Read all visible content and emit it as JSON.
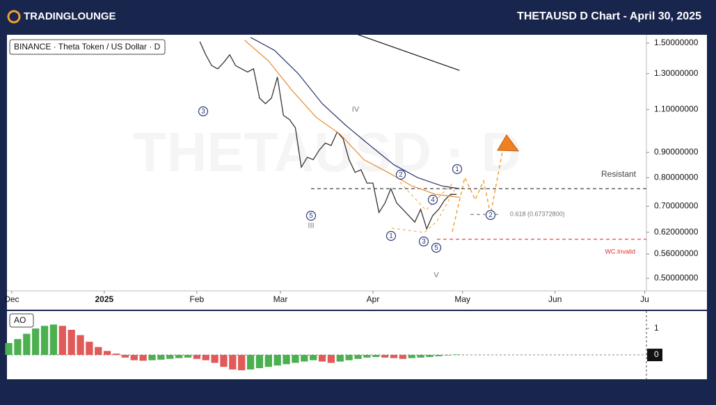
{
  "header": {
    "logo": "TRADINGLOUNGE",
    "title": "THETAUSD D Chart - April 30, 2025"
  },
  "chart_data": [
    {
      "type": "line",
      "legend_title": "BINANCE · Theta Token / US Dollar · D",
      "watermark": "THETAUSD · D",
      "log_scale": true,
      "xlim": [
        -1.6,
        212.6
      ],
      "xticks": [
        {
          "value": 0,
          "label": "Dec"
        },
        {
          "value": 31,
          "label": "2025"
        },
        {
          "value": 62,
          "label": "Feb"
        },
        {
          "value": 90,
          "label": "Mar"
        },
        {
          "value": 121,
          "label": "Apr"
        },
        {
          "value": 151,
          "label": "May"
        },
        {
          "value": 182,
          "label": "Jun"
        },
        {
          "value": 212,
          "label": "Ju"
        }
      ],
      "ylim": [
        0.4715,
        1.559
      ],
      "yticks": [
        {
          "value": 1.5,
          "label": "1.50000000"
        },
        {
          "value": 1.3,
          "label": "1.30000000"
        },
        {
          "value": 1.1,
          "label": "1.10000000"
        },
        {
          "value": 0.9,
          "label": "0.90000000"
        },
        {
          "value": 0.8,
          "label": "0.80000000"
        },
        {
          "value": 0.7,
          "label": "0.70000000"
        },
        {
          "value": 0.62,
          "label": "0.62000000"
        },
        {
          "value": 0.56,
          "label": "0.56000000"
        },
        {
          "value": 0.5,
          "label": "0.50000000"
        }
      ],
      "series": [
        {
          "color": "#333333",
          "x": [
            63,
            65,
            67,
            69,
            71,
            73,
            75,
            77,
            79,
            81,
            83,
            85,
            87,
            89,
            91,
            93,
            95,
            97,
            99,
            101,
            103,
            105,
            107,
            109,
            111,
            113,
            115,
            117,
            119,
            121,
            123,
            125,
            127,
            129,
            131,
            133,
            135,
            137,
            139,
            141,
            143,
            145,
            147,
            149
          ],
          "values": [
            1.51,
            1.42,
            1.35,
            1.33,
            1.37,
            1.42,
            1.35,
            1.33,
            1.31,
            1.33,
            1.16,
            1.13,
            1.16,
            1.28,
            1.07,
            1.05,
            1.01,
            0.84,
            0.88,
            0.87,
            0.91,
            0.94,
            0.93,
            0.99,
            0.96,
            0.87,
            0.82,
            0.83,
            0.78,
            0.78,
            0.68,
            0.71,
            0.76,
            0.71,
            0.69,
            0.67,
            0.65,
            0.69,
            0.63,
            0.67,
            0.69,
            0.72,
            0.74,
            0.74
          ]
        },
        {
          "color": "#e8892b",
          "x": [
            78,
            86,
            94,
            102,
            110,
            118,
            126,
            134,
            142,
            150
          ],
          "values": [
            1.52,
            1.38,
            1.2,
            1.06,
            0.98,
            0.87,
            0.82,
            0.77,
            0.74,
            0.73
          ]
        },
        {
          "color": "#2b3566",
          "x": [
            80,
            88,
            96,
            104,
            112,
            120,
            128,
            136,
            144,
            150
          ],
          "values": [
            1.54,
            1.45,
            1.3,
            1.13,
            1.02,
            0.93,
            0.85,
            0.8,
            0.77,
            0.76
          ]
        },
        {
          "color": "#111111",
          "x": [
            116,
            150
          ],
          "values": [
            1.56,
            1.32
          ]
        }
      ],
      "levels": [
        {
          "value": 0.76,
          "label": "Resistant",
          "color": "#444444"
        },
        {
          "value": 0.6737,
          "label": "0.618 (0.67372800)",
          "color": "#777777"
        },
        {
          "value": 0.6,
          "label": "WC.Invalid",
          "color": "#e03030"
        }
      ],
      "annotations": [
        {
          "text": "3",
          "style": "circle"
        },
        {
          "text": "IV",
          "style": "plain"
        },
        {
          "text": "5",
          "style": "circle"
        },
        {
          "text": "III",
          "style": "plain"
        },
        {
          "text": "2",
          "style": "circle"
        },
        {
          "text": "1",
          "style": "circle"
        },
        {
          "text": "4",
          "style": "circle"
        },
        {
          "text": "1",
          "style": "circle"
        },
        {
          "text": "3",
          "style": "circle"
        },
        {
          "text": "5",
          "style": "circle"
        },
        {
          "text": "V",
          "style": "plain"
        },
        {
          "text": "2",
          "style": "circle"
        }
      ]
    },
    {
      "type": "bar",
      "title": "AO",
      "up_color": "#4caf50",
      "down_color": "#e05a5a",
      "xlim": [
        -1.6,
        212.6
      ],
      "ylim": [
        -0.92,
        1.66
      ],
      "yticks": [
        1,
        0
      ],
      "x": [
        -1,
        2,
        5,
        8,
        11,
        14,
        17,
        20,
        23,
        26,
        29,
        32,
        35,
        38,
        41,
        44,
        47,
        50,
        53,
        56,
        59,
        62,
        65,
        68,
        71,
        74,
        77,
        80,
        83,
        86,
        89,
        92,
        95,
        98,
        101,
        104,
        107,
        110,
        113,
        116,
        119,
        122,
        125,
        128,
        131,
        134,
        137,
        140,
        143,
        146,
        149
      ],
      "values": [
        0.45,
        0.6,
        0.8,
        1.0,
        1.1,
        1.15,
        1.1,
        0.95,
        0.75,
        0.5,
        0.3,
        0.15,
        0.05,
        -0.1,
        -0.2,
        -0.22,
        -0.2,
        -0.18,
        -0.15,
        -0.12,
        -0.1,
        -0.15,
        -0.2,
        -0.3,
        -0.45,
        -0.55,
        -0.58,
        -0.55,
        -0.5,
        -0.45,
        -0.4,
        -0.35,
        -0.3,
        -0.25,
        -0.2,
        -0.25,
        -0.3,
        -0.25,
        -0.2,
        -0.15,
        -0.1,
        -0.08,
        -0.1,
        -0.12,
        -0.15,
        -0.12,
        -0.1,
        -0.08,
        -0.05,
        -0.02,
        0.02
      ]
    }
  ]
}
